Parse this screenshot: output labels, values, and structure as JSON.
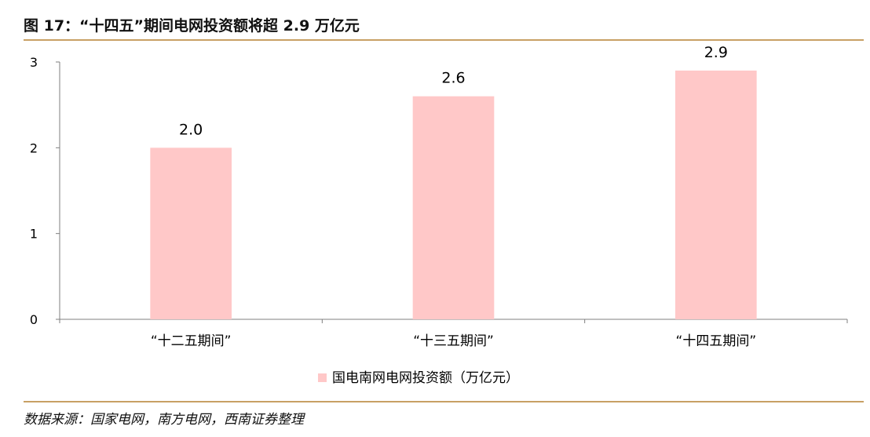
{
  "figure": {
    "title": "图 17：“十四五”期间电网投资额将超 2.9 万亿元",
    "source": "数据来源：国家电网，南方电网，西南证券整理"
  },
  "chart_data": {
    "type": "bar",
    "categories": [
      "“十二五期间”",
      "“十三五期间”",
      "“十四五期间”"
    ],
    "series": [
      {
        "name": "国电南网电网投资额（万亿元）",
        "values": [
          2.0,
          2.6,
          2.9
        ],
        "data_labels": [
          "2.0",
          "2.6",
          "2.9"
        ],
        "color": "#ffc8c8"
      }
    ],
    "ylim": [
      0,
      3
    ],
    "yticks": [
      0,
      1,
      2,
      3
    ],
    "ytick_labels": [
      "0",
      "1",
      "2",
      "3"
    ],
    "grid": false,
    "legend": "bottom-center",
    "axis_color": "#7f7f7f"
  }
}
